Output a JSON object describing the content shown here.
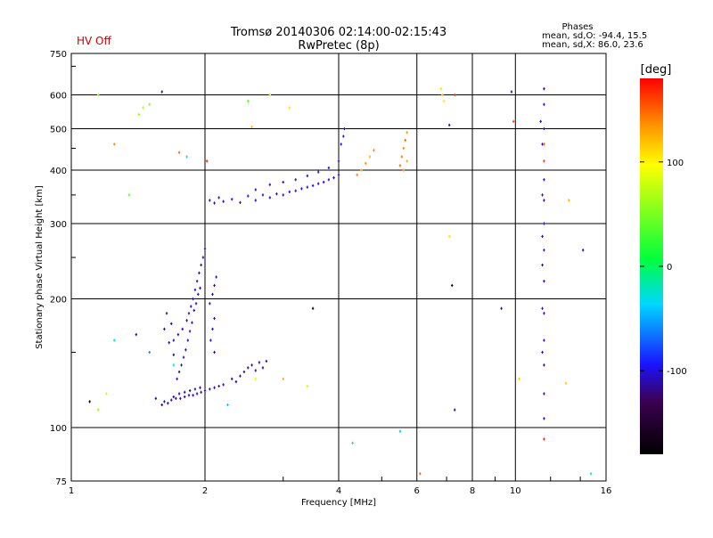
{
  "header": {
    "status": "HV Off",
    "title_line1": "Tromsø 20140306 02:14:00-02:15:43",
    "title_line2": "RwPretec (8p)",
    "phases_title": "Phases",
    "phases_o": "mean, sd,O: -94.4, 15.5",
    "phases_x": "mean, sd,X:  86.0, 23.6"
  },
  "colorbar": {
    "unit_label": "[deg]",
    "ticks": [
      {
        "value": 100,
        "label": "100"
      },
      {
        "value": 0,
        "label": "0"
      },
      {
        "value": -100,
        "label": "-100"
      }
    ],
    "range": [
      -180,
      180
    ],
    "colors": [
      "#000000",
      "#3c0050",
      "#1a14ff",
      "#00d8ff",
      "#00ff3c",
      "#ffff00",
      "#ff9900",
      "#ff0000"
    ]
  },
  "chart_data": {
    "type": "scatter",
    "title": "Tromsø 20140306 02:14:00-02:15:43",
    "subtitle": "RwPretec (8p)",
    "xlabel": "Frequency [MHz]",
    "ylabel": "Stationary phase Virtual Height [km]",
    "x_scale": "log",
    "y_scale": "log",
    "xlim": [
      1,
      16
    ],
    "ylim": [
      75,
      750
    ],
    "x_ticks": [
      1,
      2,
      4,
      6,
      8,
      10,
      16
    ],
    "x_tick_labels": [
      "1",
      "2",
      "4",
      "6",
      "8",
      "10",
      "16"
    ],
    "y_ticks": [
      75,
      100,
      200,
      300,
      400,
      500,
      600,
      750
    ],
    "y_tick_labels": [
      "75",
      "100",
      "200",
      "300",
      "400",
      "500",
      "600",
      "750"
    ],
    "grid": true,
    "color_variable": "phase [deg]",
    "points": [
      [
        1.62,
        115,
        -110
      ],
      [
        1.68,
        116,
        -108
      ],
      [
        1.72,
        117,
        -112
      ],
      [
        1.76,
        117,
        -106
      ],
      [
        1.8,
        118,
        -110
      ],
      [
        1.84,
        119,
        -104
      ],
      [
        1.88,
        119,
        -108
      ],
      [
        1.92,
        120,
        -102
      ],
      [
        1.96,
        121,
        -110
      ],
      [
        2.0,
        122,
        -106
      ],
      [
        2.05,
        123,
        -104
      ],
      [
        2.1,
        124,
        -108
      ],
      [
        2.15,
        125,
        -102
      ],
      [
        2.2,
        126,
        -106
      ],
      [
        1.55,
        117,
        -120
      ],
      [
        1.6,
        113,
        -125
      ],
      [
        1.65,
        114,
        -115
      ],
      [
        1.7,
        118,
        -118
      ],
      [
        1.75,
        120,
        -116
      ],
      [
        1.8,
        121,
        -114
      ],
      [
        1.85,
        122,
        -120
      ],
      [
        1.9,
        123,
        -112
      ],
      [
        1.95,
        124,
        -116
      ],
      [
        1.7,
        160,
        -110
      ],
      [
        1.74,
        165,
        -106
      ],
      [
        1.78,
        170,
        -104
      ],
      [
        1.82,
        178,
        -110
      ],
      [
        1.84,
        185,
        -102
      ],
      [
        1.86,
        192,
        -108
      ],
      [
        1.88,
        200,
        -104
      ],
      [
        1.9,
        210,
        -100
      ],
      [
        1.92,
        220,
        -106
      ],
      [
        1.94,
        230,
        -104
      ],
      [
        1.96,
        240,
        -102
      ],
      [
        1.98,
        250,
        -108
      ],
      [
        2.0,
        262,
        -104
      ],
      [
        1.95,
        212,
        -110
      ],
      [
        1.93,
        205,
        -106
      ],
      [
        1.91,
        195,
        -112
      ],
      [
        1.89,
        188,
        -104
      ],
      [
        1.87,
        176,
        -108
      ],
      [
        1.85,
        168,
        -102
      ],
      [
        1.83,
        160,
        -106
      ],
      [
        1.81,
        152,
        -110
      ],
      [
        1.79,
        146,
        -104
      ],
      [
        1.77,
        140,
        -108
      ],
      [
        1.75,
        135,
        -112
      ],
      [
        1.73,
        130,
        -100
      ],
      [
        1.62,
        170,
        -118
      ],
      [
        1.66,
        158,
        -112
      ],
      [
        1.7,
        148,
        -120
      ],
      [
        1.68,
        175,
        -114
      ],
      [
        1.64,
        185,
        -110
      ],
      [
        2.05,
        195,
        -102
      ],
      [
        2.08,
        205,
        -108
      ],
      [
        2.1,
        215,
        -104
      ],
      [
        2.12,
        225,
        -106
      ],
      [
        2.1,
        180,
        -110
      ],
      [
        2.08,
        170,
        -104
      ],
      [
        2.06,
        160,
        -108
      ],
      [
        2.3,
        130,
        -118
      ],
      [
        2.35,
        128,
        -116
      ],
      [
        2.4,
        132,
        -110
      ],
      [
        2.45,
        135,
        -114
      ],
      [
        2.5,
        138,
        -112
      ],
      [
        2.55,
        140,
        -118
      ],
      [
        2.6,
        136,
        -110
      ],
      [
        2.65,
        142,
        -114
      ],
      [
        2.7,
        138,
        -120
      ],
      [
        2.75,
        143,
        -112
      ],
      [
        2.05,
        340,
        -105
      ],
      [
        2.1,
        335,
        -110
      ],
      [
        2.15,
        345,
        -104
      ],
      [
        2.2,
        338,
        -108
      ],
      [
        2.3,
        342,
        -100
      ],
      [
        2.4,
        336,
        -106
      ],
      [
        2.5,
        348,
        -102
      ],
      [
        2.6,
        340,
        -108
      ],
      [
        2.7,
        350,
        -104
      ],
      [
        2.8,
        345,
        -110
      ],
      [
        2.9,
        352,
        -106
      ],
      [
        3.0,
        350,
        -102
      ],
      [
        3.1,
        356,
        -108
      ],
      [
        3.2,
        358,
        -104
      ],
      [
        3.3,
        362,
        -100
      ],
      [
        3.4,
        365,
        -106
      ],
      [
        3.5,
        368,
        -102
      ],
      [
        3.6,
        372,
        -108
      ],
      [
        3.7,
        375,
        -104
      ],
      [
        3.8,
        380,
        -100
      ],
      [
        3.9,
        384,
        -106
      ],
      [
        4.0,
        390,
        -102
      ],
      [
        2.6,
        360,
        -110
      ],
      [
        2.8,
        370,
        -106
      ],
      [
        3.0,
        375,
        -104
      ],
      [
        3.2,
        380,
        -108
      ],
      [
        3.4,
        388,
        -102
      ],
      [
        3.6,
        396,
        -104
      ],
      [
        3.8,
        405,
        -100
      ],
      [
        4.0,
        420,
        -102
      ],
      [
        4.05,
        460,
        -104
      ],
      [
        4.1,
        480,
        -100
      ],
      [
        4.12,
        500,
        -106
      ],
      [
        4.4,
        390,
        140
      ],
      [
        4.5,
        400,
        130
      ],
      [
        4.6,
        415,
        135
      ],
      [
        4.7,
        430,
        125
      ],
      [
        4.8,
        445,
        140
      ],
      [
        5.5,
        410,
        150
      ],
      [
        5.55,
        430,
        145
      ],
      [
        5.6,
        450,
        140
      ],
      [
        5.65,
        470,
        150
      ],
      [
        5.7,
        490,
        135
      ],
      [
        5.6,
        400,
        145
      ],
      [
        5.7,
        420,
        130
      ],
      [
        6.8,
        620,
        110
      ],
      [
        6.85,
        600,
        120
      ],
      [
        6.9,
        580,
        105
      ],
      [
        7.1,
        510,
        -110
      ],
      [
        7.3,
        600,
        170
      ],
      [
        9.8,
        610,
        -120
      ],
      [
        9.9,
        520,
        160
      ],
      [
        11.6,
        620,
        -110
      ],
      [
        11.6,
        570,
        -100
      ],
      [
        11.6,
        500,
        -106
      ],
      [
        11.6,
        460,
        150
      ],
      [
        11.6,
        420,
        160
      ],
      [
        11.6,
        380,
        -104
      ],
      [
        11.6,
        340,
        -110
      ],
      [
        11.6,
        300,
        -100
      ],
      [
        11.6,
        260,
        -106
      ],
      [
        11.6,
        220,
        -104
      ],
      [
        11.6,
        185,
        -108
      ],
      [
        11.6,
        160,
        -102
      ],
      [
        11.6,
        140,
        -110
      ],
      [
        11.6,
        120,
        -104
      ],
      [
        11.6,
        105,
        -106
      ],
      [
        11.6,
        94,
        170
      ],
      [
        11.4,
        520,
        -112
      ],
      [
        11.5,
        460,
        -100
      ],
      [
        11.5,
        350,
        -108
      ],
      [
        11.5,
        280,
        -104
      ],
      [
        11.5,
        240,
        -110
      ],
      [
        11.5,
        190,
        -102
      ],
      [
        11.5,
        150,
        -106
      ],
      [
        1.15,
        600,
        60
      ],
      [
        1.25,
        460,
        140
      ],
      [
        1.35,
        350,
        40
      ],
      [
        1.42,
        540,
        60
      ],
      [
        1.45,
        560,
        70
      ],
      [
        1.5,
        570,
        50
      ],
      [
        1.6,
        610,
        -120
      ],
      [
        1.75,
        440,
        150
      ],
      [
        1.82,
        430,
        -30
      ],
      [
        2.02,
        420,
        170
      ],
      [
        2.5,
        580,
        40
      ],
      [
        2.55,
        505,
        120
      ],
      [
        2.8,
        600,
        70
      ],
      [
        3.1,
        560,
        110
      ],
      [
        1.1,
        115,
        -170
      ],
      [
        1.15,
        110,
        60
      ],
      [
        1.2,
        120,
        80
      ],
      [
        1.25,
        160,
        -30
      ],
      [
        1.4,
        165,
        -110
      ],
      [
        1.5,
        150,
        -60
      ],
      [
        1.7,
        140,
        -20
      ],
      [
        2.1,
        150,
        -110
      ],
      [
        2.25,
        113,
        -40
      ],
      [
        2.6,
        130,
        90
      ],
      [
        3.0,
        130,
        130
      ],
      [
        3.4,
        125,
        80
      ],
      [
        3.5,
        190,
        -170
      ],
      [
        4.3,
        92,
        -10
      ],
      [
        5.5,
        98,
        -40
      ],
      [
        6.1,
        78,
        150
      ],
      [
        7.1,
        280,
        110
      ],
      [
        7.2,
        215,
        -170
      ],
      [
        7.3,
        110,
        -120
      ],
      [
        9.3,
        190,
        -110
      ],
      [
        10.2,
        130,
        120
      ],
      [
        13.0,
        127,
        120
      ],
      [
        14.8,
        78,
        -10
      ],
      [
        14.2,
        260,
        -120
      ],
      [
        13.2,
        340,
        130
      ]
    ]
  }
}
